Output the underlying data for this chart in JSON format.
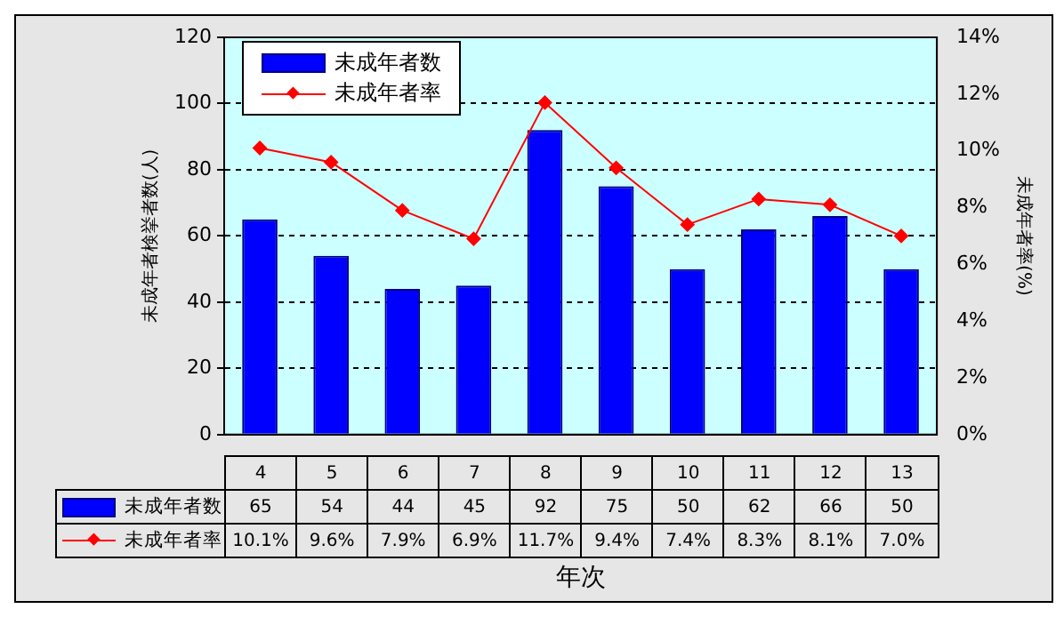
{
  "chart_data": {
    "type": "bar",
    "xlabel": "年次",
    "ylabel": "未成年者検挙者数(人)",
    "y2label": "未成年者率(%)",
    "categories": [
      "4",
      "5",
      "6",
      "7",
      "8",
      "9",
      "10",
      "11",
      "12",
      "13"
    ],
    "series": [
      {
        "name": "未成年者数",
        "color": "#0000ff",
        "values": [
          65,
          54,
          44,
          45,
          92,
          75,
          50,
          62,
          66,
          50
        ],
        "value_labels": [
          "65",
          "54",
          "44",
          "45",
          "92",
          "75",
          "50",
          "62",
          "66",
          "50"
        ]
      },
      {
        "name": "未成年者率",
        "type": "line",
        "axis": "y2",
        "color": "#ff0000",
        "marker": "diamond",
        "values": [
          10.1,
          9.6,
          7.9,
          6.9,
          11.7,
          9.4,
          7.4,
          8.3,
          8.1,
          7.0
        ],
        "value_labels": [
          "10.1%",
          "9.6%",
          "7.9%",
          "6.9%",
          "11.7%",
          "9.4%",
          "7.4%",
          "8.3%",
          "8.1%",
          "7.0%"
        ]
      }
    ],
    "ylim": [
      0,
      120
    ],
    "yticks": [
      0,
      20,
      40,
      60,
      80,
      100,
      120
    ],
    "y2lim": [
      0,
      14
    ],
    "y2ticks": [
      {
        "value": 0,
        "label": "0%"
      },
      {
        "value": 2,
        "label": "2%"
      },
      {
        "value": 4,
        "label": "4%"
      },
      {
        "value": 6,
        "label": "6%"
      },
      {
        "value": 8,
        "label": "8%"
      },
      {
        "value": 10,
        "label": "10%"
      },
      {
        "value": 12,
        "label": "12%"
      },
      {
        "value": 14,
        "label": "14%"
      }
    ],
    "grid": "y",
    "legend": "top left"
  }
}
